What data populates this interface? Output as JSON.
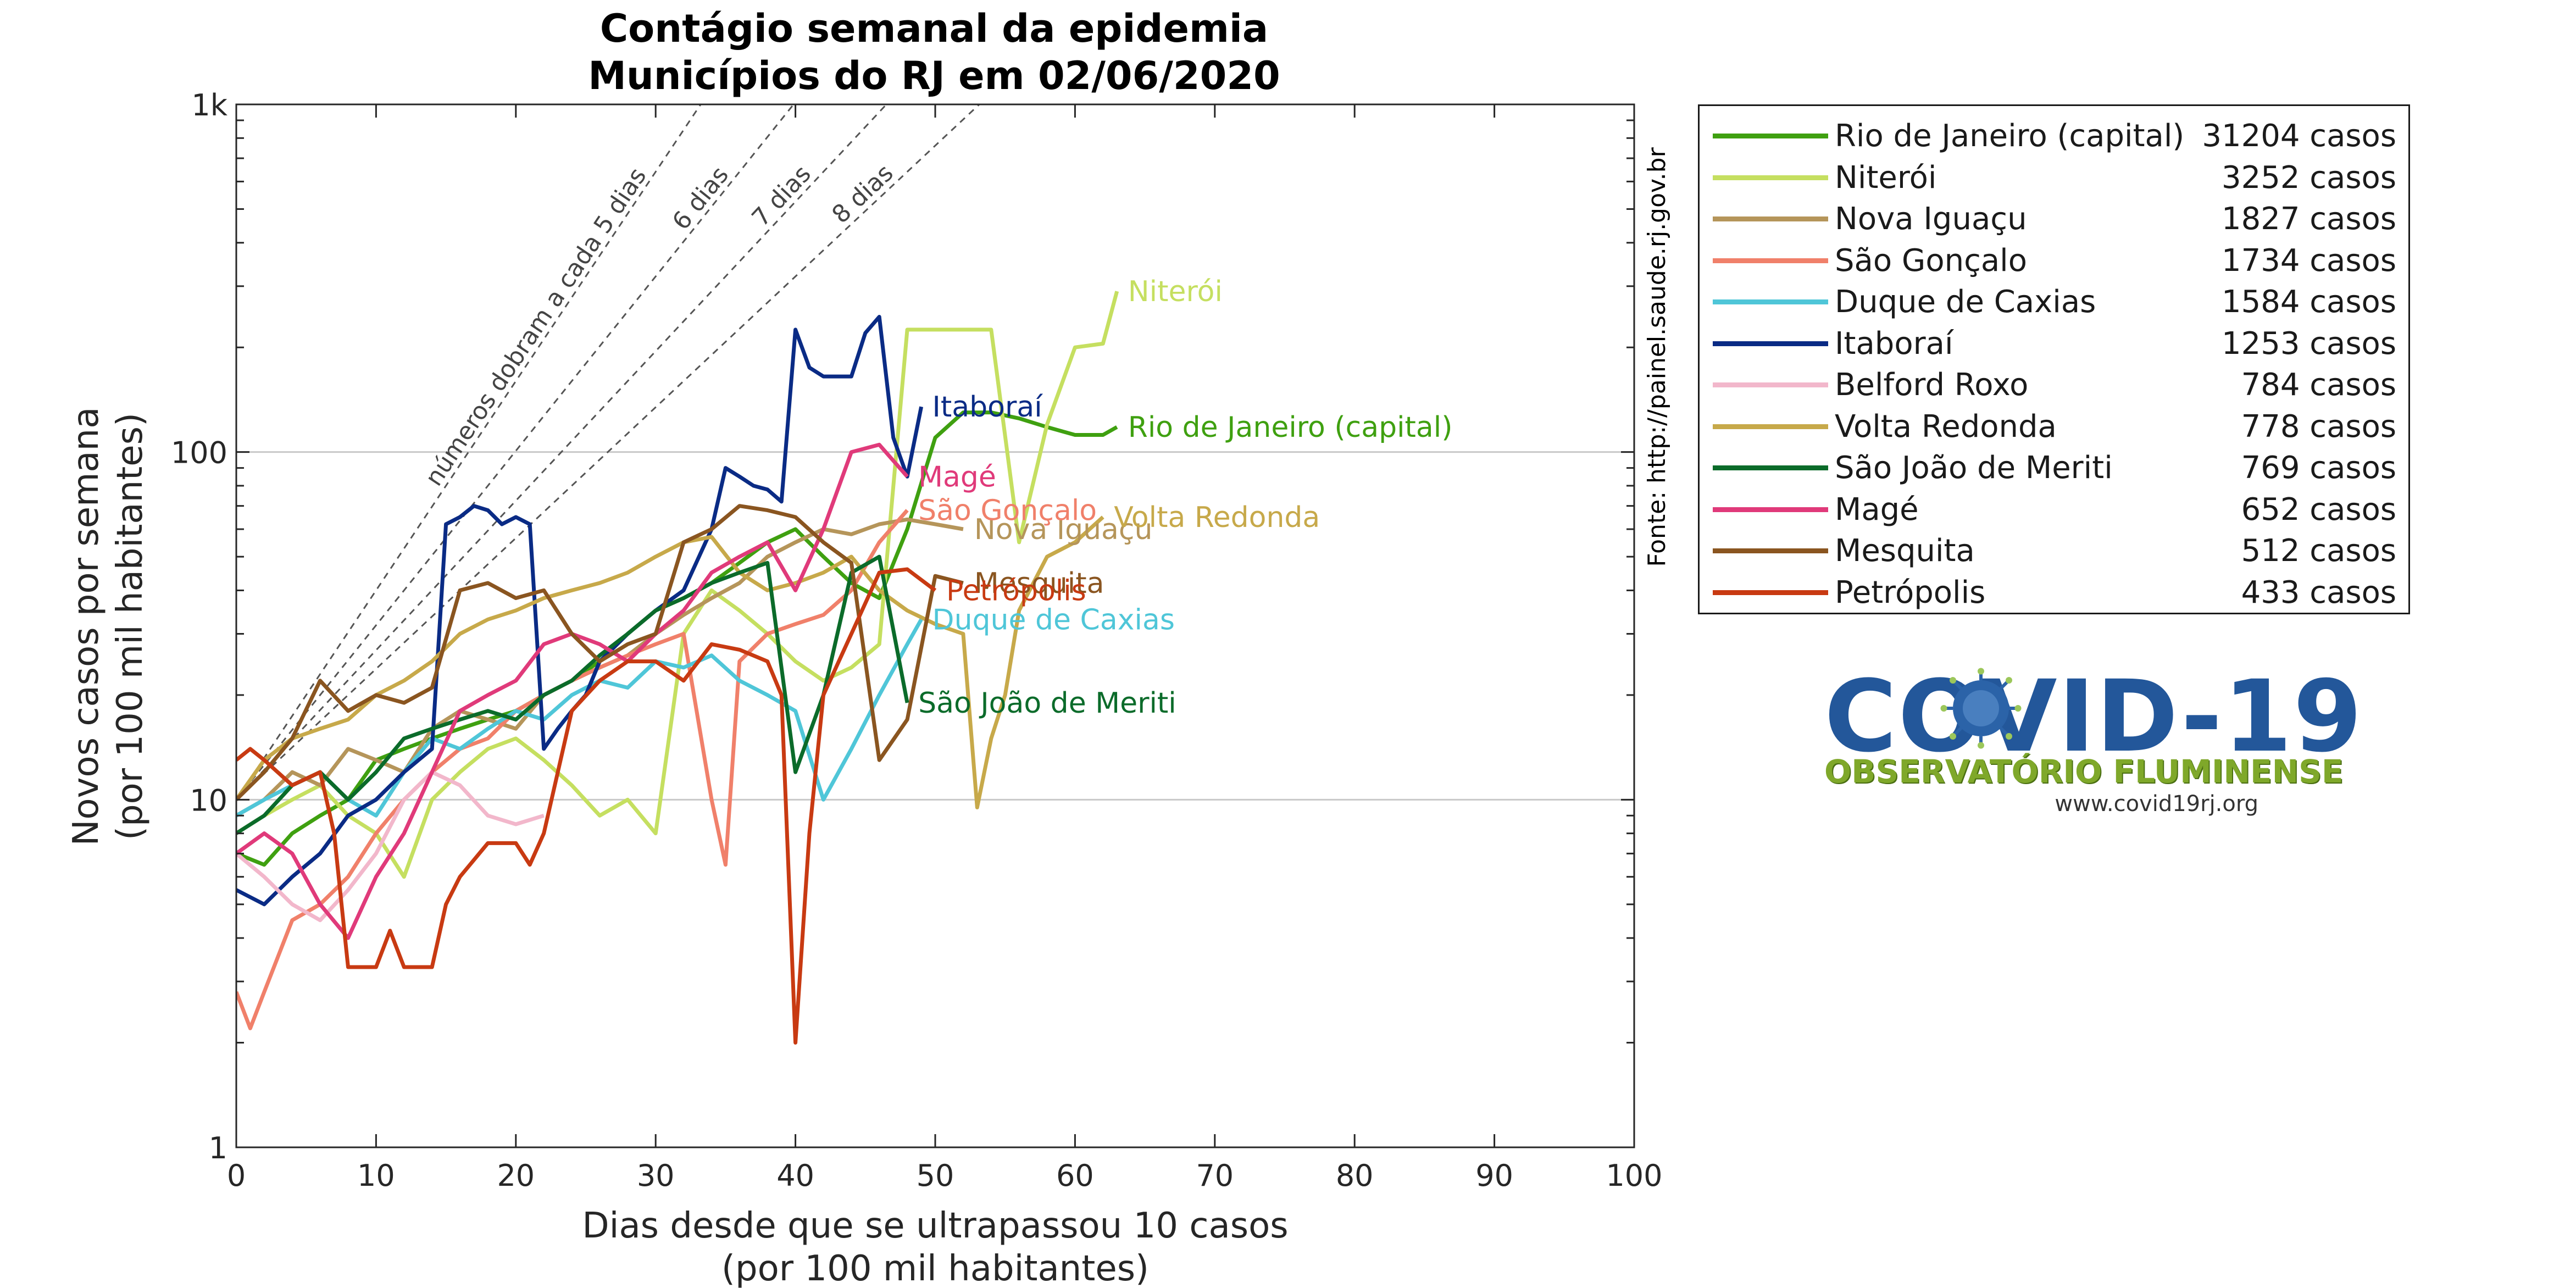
{
  "chart_data": {
    "type": "line",
    "title": "Contágio semanal da epidemia",
    "subtitle": "Municípios do RJ em 02/06/2020",
    "xlabel": "Dias desde que se ultrapassou 10 casos",
    "xlabel2": "(por 100 mil habitantes)",
    "ylabel": "Novos casos por semana",
    "ylabel2": "(por 100 mil habitantes)",
    "source_note": "Fonte: http://painel.saude.rj.gov.br",
    "y_scale": "log",
    "xlim": [
      0,
      100
    ],
    "ylim": [
      1,
      1000
    ],
    "x_ticks": [
      0,
      10,
      20,
      30,
      40,
      50,
      60,
      70,
      80,
      90,
      100
    ],
    "x_tick_labels": [
      "0",
      "10",
      "20",
      "30",
      "40",
      "50",
      "60",
      "70",
      "80",
      "90",
      "100"
    ],
    "y_ticks": [
      1,
      10,
      100,
      1000
    ],
    "y_tick_labels": [
      "1",
      "10",
      "100",
      "1k"
    ],
    "grid": "horizontal major lines",
    "legend_position": "right",
    "doubling_lines": [
      {
        "label": "números dobram a cada 5 dias",
        "days": 5
      },
      {
        "label": "6 dias",
        "days": 6
      },
      {
        "label": "7 dias",
        "days": 7
      },
      {
        "label": "8 dias",
        "days": 8
      }
    ],
    "series": [
      {
        "name": "Rio de Janeiro (capital)",
        "cases": "31204 casos",
        "color": "#3fa010",
        "end_label": "Rio de Janeiro (capital)",
        "x": [
          0,
          2,
          4,
          6,
          8,
          10,
          12,
          14,
          16,
          18,
          20,
          22,
          24,
          26,
          28,
          30,
          32,
          34,
          36,
          38,
          40,
          42,
          44,
          46,
          48,
          50,
          52,
          54,
          56,
          58,
          60,
          62,
          63
        ],
        "y": [
          7,
          6.5,
          8,
          9,
          10,
          13,
          14,
          15,
          16,
          17,
          18,
          20,
          22,
          25,
          30,
          35,
          38,
          42,
          48,
          55,
          60,
          50,
          42,
          38,
          60,
          110,
          130,
          130,
          125,
          118,
          112,
          112,
          118
        ]
      },
      {
        "name": "Niterói",
        "cases": "3252 casos",
        "color": "#c5df60",
        "end_label": "Niterói",
        "x": [
          0,
          2,
          4,
          6,
          8,
          10,
          12,
          14,
          16,
          18,
          20,
          22,
          24,
          26,
          28,
          30,
          32,
          34,
          36,
          38,
          40,
          42,
          44,
          46,
          48,
          50,
          52,
          54,
          56,
          58,
          60,
          62,
          63
        ],
        "y": [
          8,
          9,
          10,
          11,
          9,
          8,
          6,
          10,
          12,
          14,
          15,
          13,
          11,
          9,
          10,
          8,
          30,
          40,
          35,
          30,
          25,
          22,
          24,
          28,
          225,
          225,
          225,
          225,
          55,
          120,
          200,
          205,
          290
        ]
      },
      {
        "name": "Nova Iguaçu",
        "cases": "1827 casos",
        "color": "#b5955a",
        "end_label": "Nova Iguaçu",
        "x": [
          0,
          2,
          4,
          6,
          8,
          10,
          12,
          14,
          16,
          18,
          20,
          22,
          24,
          26,
          28,
          30,
          32,
          34,
          36,
          38,
          40,
          42,
          44,
          46,
          48,
          50,
          52
        ],
        "y": [
          9,
          10,
          12,
          11,
          14,
          13,
          12,
          16,
          18,
          17,
          16,
          20,
          22,
          24,
          26,
          30,
          34,
          38,
          42,
          50,
          55,
          60,
          58,
          62,
          64,
          62,
          60
        ]
      },
      {
        "name": "São Gonçalo",
        "cases": "1734 casos",
        "color": "#f0806a",
        "end_label": "São Gonçalo",
        "x": [
          0,
          1,
          2,
          4,
          6,
          8,
          10,
          12,
          14,
          16,
          18,
          20,
          22,
          24,
          26,
          28,
          30,
          32,
          34,
          35,
          36,
          38,
          40,
          42,
          44,
          46,
          48
        ],
        "y": [
          2.8,
          2.2,
          2.8,
          4.5,
          5,
          6,
          8,
          10,
          12,
          14,
          15,
          18,
          20,
          22,
          24,
          26,
          28,
          30,
          10,
          6.5,
          25,
          30,
          32,
          34,
          40,
          55,
          68
        ]
      },
      {
        "name": "Duque de Caxias",
        "cases": "1584 casos",
        "color": "#4fc6d8",
        "end_label": "Duque de Caxias",
        "x": [
          0,
          2,
          4,
          6,
          8,
          10,
          12,
          14,
          16,
          18,
          20,
          22,
          24,
          26,
          28,
          30,
          32,
          34,
          36,
          38,
          40,
          42,
          44,
          46,
          48,
          49
        ],
        "y": [
          9,
          10,
          11,
          12,
          10,
          9,
          12,
          15,
          14,
          16,
          18,
          17,
          20,
          22,
          21,
          25,
          24,
          26,
          22,
          20,
          18,
          10,
          14,
          20,
          28,
          33
        ]
      },
      {
        "name": "Itaboraí",
        "cases": "1253 casos",
        "color": "#0a2b85",
        "end_label": "Itaboraí",
        "x": [
          0,
          2,
          4,
          6,
          8,
          10,
          12,
          14,
          15,
          16,
          17,
          18,
          19,
          20,
          21,
          22,
          23,
          24,
          25,
          26,
          28,
          30,
          32,
          34,
          35,
          36,
          37,
          38,
          39,
          40,
          41,
          42,
          43,
          44,
          45,
          46,
          47,
          48,
          49
        ],
        "y": [
          5.5,
          5,
          6,
          7,
          9,
          10,
          12,
          14,
          62,
          65,
          70,
          68,
          62,
          65,
          62,
          14,
          16,
          18,
          20,
          25,
          30,
          35,
          40,
          60,
          90,
          85,
          80,
          78,
          72,
          225,
          175,
          165,
          165,
          165,
          220,
          245,
          110,
          85,
          135
        ]
      },
      {
        "name": "Belford Roxo",
        "cases": "784 casos",
        "color": "#f2b7cb",
        "end_label": "",
        "x": [
          0,
          2,
          4,
          6,
          8,
          10,
          12,
          14,
          16,
          18,
          20,
          22
        ],
        "y": [
          7,
          6,
          5,
          4.5,
          5.5,
          7,
          10,
          12,
          11,
          9,
          8.5,
          9
        ]
      },
      {
        "name": "Volta Redonda",
        "cases": "778 casos",
        "color": "#c7a94a",
        "end_label": "Volta Redonda",
        "x": [
          0,
          2,
          4,
          6,
          8,
          10,
          12,
          14,
          16,
          18,
          20,
          22,
          24,
          26,
          28,
          30,
          32,
          34,
          36,
          38,
          40,
          42,
          44,
          46,
          48,
          50,
          52,
          53,
          54,
          55,
          56,
          58,
          60,
          62
        ],
        "y": [
          10,
          13,
          15,
          16,
          17,
          20,
          22,
          25,
          30,
          33,
          35,
          38,
          40,
          42,
          45,
          50,
          55,
          57,
          45,
          40,
          42,
          45,
          50,
          40,
          35,
          32,
          30,
          9.5,
          15,
          20,
          35,
          50,
          55,
          65
        ]
      },
      {
        "name": "São João de Meriti",
        "cases": "769 casos",
        "color": "#0b6b2a",
        "end_label": "São João de Meriti",
        "x": [
          0,
          2,
          4,
          6,
          8,
          10,
          12,
          14,
          16,
          18,
          20,
          22,
          24,
          26,
          28,
          30,
          32,
          34,
          36,
          38,
          40,
          42,
          44,
          46,
          48
        ],
        "y": [
          8,
          9,
          11,
          12,
          10,
          12,
          15,
          16,
          17,
          18,
          17,
          20,
          22,
          26,
          30,
          35,
          38,
          42,
          45,
          48,
          12,
          20,
          45,
          50,
          19
        ]
      },
      {
        "name": "Magé",
        "cases": "652 casos",
        "color": "#e03a7a",
        "end_label": "Magé",
        "x": [
          0,
          2,
          4,
          6,
          8,
          10,
          12,
          14,
          16,
          18,
          20,
          22,
          24,
          26,
          28,
          30,
          32,
          34,
          36,
          38,
          40,
          42,
          44,
          46,
          48
        ],
        "y": [
          7,
          8,
          7,
          5,
          4,
          6,
          8,
          12,
          18,
          20,
          22,
          28,
          30,
          28,
          25,
          30,
          35,
          45,
          50,
          55,
          40,
          60,
          100,
          105,
          85
        ]
      },
      {
        "name": "Mesquita",
        "cases": "512 casos",
        "color": "#8a5520",
        "end_label": "Mesquita",
        "x": [
          0,
          2,
          4,
          6,
          8,
          10,
          12,
          14,
          16,
          18,
          20,
          22,
          24,
          26,
          28,
          30,
          32,
          34,
          36,
          38,
          40,
          42,
          44,
          46,
          48,
          50,
          52
        ],
        "y": [
          10,
          12,
          15,
          22,
          18,
          20,
          19,
          21,
          40,
          42,
          38,
          40,
          30,
          25,
          28,
          30,
          55,
          60,
          70,
          68,
          65,
          55,
          48,
          13,
          17,
          44,
          42
        ]
      },
      {
        "name": "Petrópolis",
        "cases": "433 casos",
        "color": "#c83a12",
        "end_label": "Petrópolis",
        "x": [
          0,
          1,
          2,
          4,
          6,
          7,
          8,
          10,
          11,
          12,
          14,
          15,
          16,
          18,
          20,
          21,
          22,
          24,
          26,
          28,
          30,
          32,
          34,
          36,
          38,
          39,
          40,
          41,
          42,
          44,
          46,
          48,
          50
        ],
        "y": [
          13,
          14,
          13,
          11,
          12,
          8,
          3.3,
          3.3,
          4.2,
          3.3,
          3.3,
          5,
          6,
          7.5,
          7.5,
          6.5,
          8,
          18,
          22,
          25,
          25,
          22,
          28,
          27,
          25,
          20,
          2,
          8,
          20,
          30,
          45,
          46,
          40
        ]
      }
    ]
  },
  "logo": {
    "title": "COVID-19",
    "subtitle": "OBSERVATÓRIO FLUMINENSE",
    "url": "www.covid19rj.org"
  }
}
